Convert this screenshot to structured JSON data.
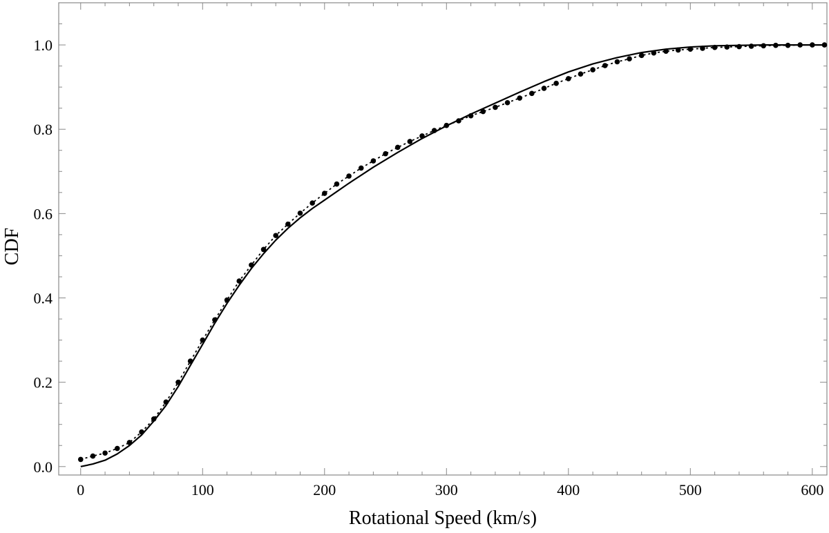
{
  "chart_data": {
    "type": "line",
    "title": "",
    "xlabel": "Rotational Speed (km/s)",
    "ylabel": "CDF",
    "xlim": [
      -18,
      612
    ],
    "ylim": [
      -0.02,
      1.1
    ],
    "x_ticks": [
      0,
      100,
      200,
      300,
      400,
      500,
      600
    ],
    "y_ticks": [
      0.0,
      0.2,
      0.4,
      0.6,
      0.8,
      1.0
    ],
    "x_tick_labels": [
      "0",
      "100",
      "200",
      "300",
      "400",
      "500",
      "600"
    ],
    "y_tick_labels": [
      "0.0",
      "0.2",
      "0.4",
      "0.6",
      "0.8",
      "1.0"
    ],
    "grid": false,
    "legend": "none",
    "series": [
      {
        "style": "solid",
        "x": [
          0,
          10,
          20,
          30,
          40,
          50,
          60,
          70,
          80,
          90,
          100,
          110,
          120,
          130,
          140,
          150,
          160,
          170,
          180,
          190,
          200,
          220,
          240,
          260,
          280,
          300,
          320,
          340,
          360,
          380,
          400,
          420,
          440,
          460,
          480,
          500,
          520,
          540,
          560,
          580,
          600,
          612
        ],
        "y": [
          0.0,
          0.006,
          0.015,
          0.03,
          0.05,
          0.075,
          0.108,
          0.145,
          0.19,
          0.24,
          0.29,
          0.34,
          0.387,
          0.43,
          0.47,
          0.505,
          0.537,
          0.565,
          0.59,
          0.612,
          0.632,
          0.672,
          0.71,
          0.745,
          0.778,
          0.808,
          0.836,
          0.862,
          0.888,
          0.913,
          0.936,
          0.955,
          0.97,
          0.982,
          0.99,
          0.995,
          0.998,
          0.999,
          1.0,
          1.0,
          1.0,
          1.0
        ]
      },
      {
        "style": "dotted-with-markers",
        "x": [
          0,
          10,
          20,
          30,
          40,
          50,
          60,
          70,
          80,
          90,
          100,
          110,
          120,
          130,
          140,
          150,
          160,
          170,
          180,
          190,
          200,
          210,
          220,
          230,
          240,
          250,
          260,
          270,
          280,
          290,
          300,
          310,
          320,
          330,
          340,
          350,
          360,
          370,
          380,
          390,
          400,
          410,
          420,
          430,
          440,
          450,
          460,
          470,
          480,
          490,
          500,
          510,
          520,
          530,
          540,
          550,
          560,
          570,
          580,
          590,
          600,
          610
        ],
        "y": [
          0.017,
          0.025,
          0.032,
          0.043,
          0.057,
          0.082,
          0.113,
          0.153,
          0.2,
          0.25,
          0.3,
          0.348,
          0.395,
          0.44,
          0.478,
          0.515,
          0.548,
          0.575,
          0.601,
          0.625,
          0.648,
          0.67,
          0.689,
          0.708,
          0.725,
          0.742,
          0.757,
          0.771,
          0.784,
          0.797,
          0.809,
          0.82,
          0.832,
          0.842,
          0.852,
          0.863,
          0.874,
          0.885,
          0.897,
          0.909,
          0.92,
          0.931,
          0.941,
          0.951,
          0.96,
          0.967,
          0.975,
          0.981,
          0.985,
          0.988,
          0.99,
          0.992,
          0.994,
          0.995,
          0.996,
          0.997,
          0.998,
          0.999,
          0.999,
          1.0,
          1.0,
          1.0
        ]
      }
    ]
  }
}
